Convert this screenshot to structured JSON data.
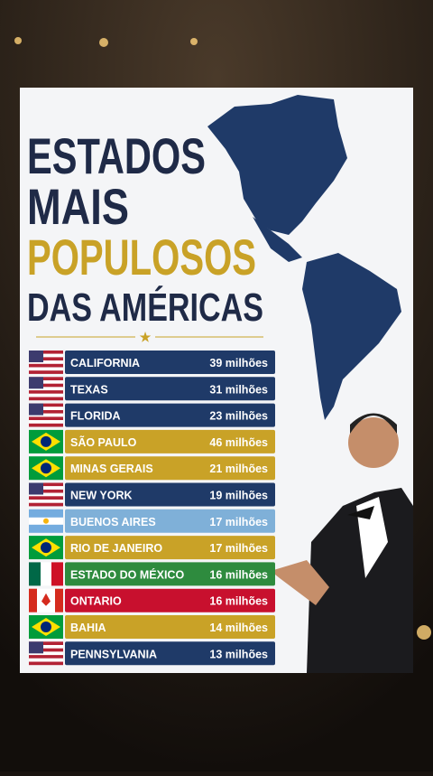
{
  "title": {
    "lines": [
      "ESTADOS",
      "MAIS",
      "POPULOSOS",
      "DAS AMÉRICAS"
    ]
  },
  "rows": [
    {
      "name": "CALIFORNIA",
      "value": "39 milhões",
      "color": "#1f3a68"
    },
    {
      "name": "TEXAS",
      "value": "31 milhões",
      "color": "#1f3a68"
    },
    {
      "name": "FLORIDA",
      "value": "23 milhões",
      "color": "#1f3a68"
    },
    {
      "name": "SÃO PAULO",
      "value": "46 milhões",
      "color": "#c9a227"
    },
    {
      "name": "MINAS GERAIS",
      "value": "21 milhões",
      "color": "#c9a227"
    },
    {
      "name": "NEW YORK",
      "value": "19 milhões",
      "color": "#1f3a68"
    },
    {
      "name": "BUENOS AIRES",
      "value": "17 milhões",
      "color": "#7fb0d8"
    },
    {
      "name": "RIO DE JANEIRO",
      "value": "17 milhões",
      "color": "#c9a227"
    },
    {
      "name": "ESTADO DO MÉXICO",
      "value": "16 milhões",
      "color": "#2e8b3e"
    },
    {
      "name": "ONTARIO",
      "value": "16 milhões",
      "color": "#c8102e"
    },
    {
      "name": "BAHIA",
      "value": "14 milhões",
      "color": "#c9a227"
    },
    {
      "name": "PENNSYLVANIA",
      "value": "13 milhões",
      "color": "#1f3a68"
    }
  ]
}
